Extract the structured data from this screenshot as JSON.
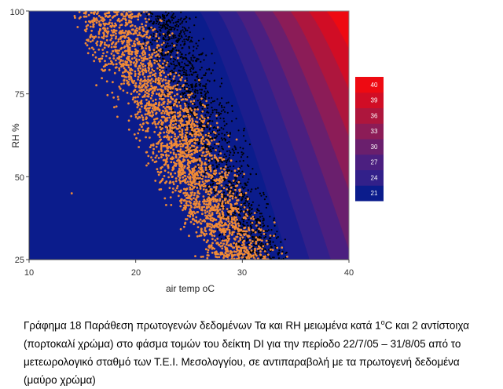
{
  "chart_data": {
    "type": "heatmap",
    "xlabel": "air temp oC",
    "ylabel": "RH %",
    "xlim": [
      10,
      40
    ],
    "ylim": [
      25,
      100
    ],
    "xticks": [
      "10",
      "20",
      "30",
      "40"
    ],
    "yticks": [
      "25",
      "50",
      "75",
      "100"
    ],
    "colorbar": {
      "labels": [
        "21",
        "24",
        "27",
        "30",
        "33",
        "36",
        "39",
        "40"
      ],
      "colors": [
        "#0b1c8c",
        "#32208a",
        "#4b1f80",
        "#6a1f6d",
        "#8c1c57",
        "#ae163d",
        "#d10d25",
        "#ee0a12"
      ]
    },
    "contour_bands": {
      "colors": [
        "#0b1c8c",
        "#1c1d8d",
        "#32208a",
        "#4b1f80",
        "#6a1f6d",
        "#8c1c57",
        "#ae163d",
        "#d10d25",
        "#ee0a12"
      ]
    },
    "scatter_series": [
      {
        "description_color": "#000000",
        "density_band": [
          {
            "y": 100,
            "x_min": 19.0,
            "x_max": 26.0
          },
          {
            "y": 87.5,
            "x_min": 20.0,
            "x_max": 28.0
          },
          {
            "y": 75,
            "x_min": 21.0,
            "x_max": 29.5
          },
          {
            "y": 62.5,
            "x_min": 22.0,
            "x_max": 31.0
          },
          {
            "y": 50,
            "x_min": 23.5,
            "x_max": 32.5
          },
          {
            "y": 37.5,
            "x_min": 26.0,
            "x_max": 34.0
          },
          {
            "y": 25,
            "x_min": 28.0,
            "x_max": 36.0
          }
        ]
      },
      {
        "description_color": "#f08a36",
        "density_band": [
          {
            "y": 100,
            "x_min": 12.5,
            "x_max": 23.0
          },
          {
            "y": 87.5,
            "x_min": 14.0,
            "x_max": 25.0
          },
          {
            "y": 75,
            "x_min": 16.5,
            "x_max": 27.5
          },
          {
            "y": 62.5,
            "x_min": 19.0,
            "x_max": 29.5
          },
          {
            "y": 50,
            "x_min": 20.0,
            "x_max": 31.0
          },
          {
            "y": 37.5,
            "x_min": 22.5,
            "x_max": 33.0
          },
          {
            "y": 25,
            "x_min": 25.0,
            "x_max": 35.0
          }
        ],
        "outliers": [
          {
            "x": 14,
            "y": 45
          }
        ]
      }
    ]
  },
  "caption": {
    "line1_pre": "Γράφημα 18 Παράθεση πρωτογενών δεδομένων Τα και RH μειωμένα κατά 1",
    "line1_sup": "o",
    "line1_post": "C και 2 αντίστοιχα",
    "line2": "(πορτοκαλί χρώμα) στο φάσμα τομών του δείκτη DI για την περίοδο 22/7/05 – 31/8/05 από το",
    "line3": "μετεωρολογικό σταθμό των Τ.Ε.Ι. Μεσολογγίου, σε αντιπαραβολή με τα πρωτογενή δεδομένα",
    "line4": "(μαύρο χρώμα)"
  }
}
